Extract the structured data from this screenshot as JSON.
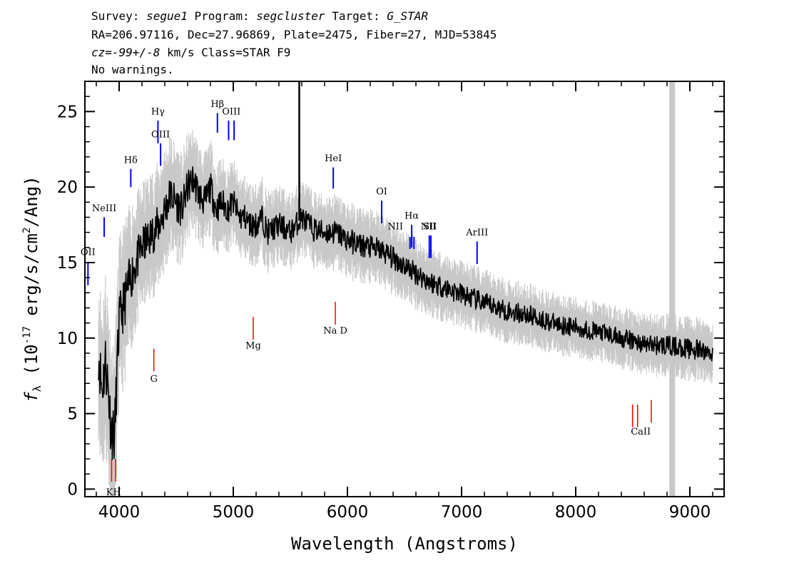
{
  "header": {
    "line1": {
      "survey_label": "Survey:",
      "survey": "segue1",
      "program_label": "Program:",
      "program": "segcluster",
      "target_label": "Target:",
      "target": "G_STAR"
    },
    "line2": "RA=206.97116, Dec=27.96869, Plate=2475, Fiber=27, MJD=53845",
    "line3": {
      "cz": "cz=-99+/-8",
      "rest": "km/s Class=STAR F9"
    },
    "line4": "No warnings."
  },
  "chart_data": {
    "type": "line",
    "xlabel": "Wavelength (Angstroms)",
    "ylabel": "f_λ (10^-17 erg/s/cm^2/Ang)",
    "xlim": [
      3700,
      9300
    ],
    "ylim": [
      -0.5,
      27
    ],
    "x_ticks": [
      4000,
      5000,
      6000,
      7000,
      8000,
      9000
    ],
    "y_ticks": [
      0,
      5,
      10,
      15,
      20,
      25
    ],
    "colors": {
      "flux": "#000000",
      "error": "#c8c8c8",
      "emission": "#0000ff",
      "absorption": "#ff0000"
    },
    "masked_region": [
      8820,
      8870
    ],
    "series": [
      {
        "name": "flux",
        "x": [
          3820,
          3850,
          3880,
          3900,
          3930,
          3960,
          3980,
          4000,
          4050,
          4100,
          4150,
          4200,
          4250,
          4300,
          4350,
          4400,
          4450,
          4500,
          4550,
          4600,
          4650,
          4700,
          4750,
          4800,
          4850,
          4900,
          4950,
          5000,
          5050,
          5100,
          5150,
          5200,
          5250,
          5300,
          5400,
          5500,
          5600,
          5700,
          5800,
          5900,
          6000,
          6100,
          6200,
          6300,
          6400,
          6500,
          6600,
          6700,
          6800,
          6900,
          7000,
          7200,
          7400,
          7600,
          7800,
          8000,
          8200,
          8400,
          8500,
          8600,
          8800,
          9000,
          9200
        ],
        "y": [
          9.0,
          6.5,
          8.5,
          7.0,
          4.0,
          3.5,
          7.5,
          11.0,
          12.5,
          14.0,
          15.0,
          16.0,
          16.5,
          17.0,
          17.5,
          18.5,
          19.5,
          19.0,
          18.5,
          20.0,
          20.5,
          19.5,
          19.0,
          20.0,
          18.5,
          19.0,
          18.5,
          19.0,
          18.0,
          18.0,
          17.5,
          17.5,
          18.0,
          17.0,
          17.5,
          17.0,
          18.0,
          17.2,
          17.0,
          17.0,
          16.5,
          16.2,
          16.0,
          15.8,
          15.3,
          14.8,
          14.3,
          13.8,
          13.5,
          13.2,
          12.9,
          12.3,
          11.8,
          11.5,
          11.0,
          10.7,
          10.4,
          10.0,
          9.8,
          9.6,
          9.5,
          9.3,
          9.0
        ],
        "spikes": [
          {
            "x": 5578,
            "y": 27
          }
        ]
      },
      {
        "name": "error",
        "x": [
          3820,
          3900,
          4000,
          4200,
          4400,
          4600,
          5000,
          5500,
          6000,
          7000,
          8000,
          9000,
          9200
        ],
        "y": [
          4.0,
          4.5,
          4.0,
          3.0,
          3.0,
          2.5,
          2.0,
          1.8,
          1.8,
          1.6,
          1.4,
          1.5,
          1.5
        ]
      }
    ],
    "emission_lines": [
      {
        "label": "OII",
        "x": 3727,
        "y_top": 15.0,
        "y_bottom": 13.5
      },
      {
        "label": "NeIII",
        "x": 3869,
        "y_top": 18.0,
        "y_bottom": 16.7
      },
      {
        "label": "Hδ",
        "x": 4102,
        "y_top": 21.2,
        "y_bottom": 20.0
      },
      {
        "label": "Hγ",
        "x": 4340,
        "y_top": 24.4,
        "y_bottom": 22.9
      },
      {
        "label": "OIII",
        "x": 4363,
        "y_top": 22.9,
        "y_bottom": 21.4
      },
      {
        "label": "Hβ",
        "x": 4861,
        "y_top": 24.9,
        "y_bottom": 23.6
      },
      {
        "label": "OIII",
        "x": 4959,
        "y_top": 24.4,
        "y_bottom": 23.1
      },
      {
        "label": "OIII",
        "x": 5007,
        "y_top": 24.4,
        "y_bottom": 23.1
      },
      {
        "label": "HeI",
        "x": 5876,
        "y_top": 21.3,
        "y_bottom": 19.9
      },
      {
        "label": "OI",
        "x": 6300,
        "y_top": 19.1,
        "y_bottom": 17.6
      },
      {
        "label": "NII",
        "x": 6548,
        "y_top": 16.7,
        "y_bottom": 15.9
      },
      {
        "label": "Hα",
        "x": 6563,
        "y_top": 17.5,
        "y_bottom": 16.0
      },
      {
        "label": "NII",
        "x": 6583,
        "y_top": 16.7,
        "y_bottom": 15.9
      },
      {
        "label": "SII",
        "x": 6717,
        "y_top": 16.8,
        "y_bottom": 15.3
      },
      {
        "label": "SII",
        "x": 6731,
        "y_top": 16.8,
        "y_bottom": 15.3
      },
      {
        "label": "ArIII",
        "x": 7136,
        "y_top": 16.4,
        "y_bottom": 14.9
      }
    ],
    "absorption_lines": [
      {
        "label": "K",
        "x": 3934,
        "y_top": 2.0,
        "y_bottom": 0.5
      },
      {
        "label": "H",
        "x": 3969,
        "y_top": 2.0,
        "y_bottom": 0.5
      },
      {
        "label": "G",
        "x": 4304,
        "y_top": 9.3,
        "y_bottom": 7.8
      },
      {
        "label": "Mg",
        "x": 5175,
        "y_top": 11.4,
        "y_bottom": 9.9
      },
      {
        "label": "Na",
        "x": 5894,
        "y_top": 12.4,
        "y_bottom": 10.9
      },
      {
        "label": "CaII",
        "x": 8498,
        "y_top": 5.6,
        "y_bottom": 4.1
      },
      {
        "label": "CaII",
        "x": 8542,
        "y_top": 5.6,
        "y_bottom": 4.1
      },
      {
        "label": "CaII",
        "x": 8662,
        "y_top": 5.9,
        "y_bottom": 4.4
      }
    ],
    "line_labels": [
      {
        "text": "OII",
        "kind": "emission",
        "x": 3727,
        "y": 15.5
      },
      {
        "text": "NeIII",
        "kind": "emission",
        "x": 3869,
        "y": 18.4
      },
      {
        "text": "Hδ",
        "kind": "emission",
        "x": 4102,
        "y": 21.6
      },
      {
        "text": "Hγ",
        "kind": "emission",
        "x": 4340,
        "y": 24.8
      },
      {
        "text": "OIII",
        "kind": "emission",
        "x": 4363,
        "y": 23.3
      },
      {
        "text": "Hβ",
        "kind": "emission",
        "x": 4861,
        "y": 25.3
      },
      {
        "text": "OIII",
        "kind": "emission",
        "x": 4983,
        "y": 24.8
      },
      {
        "text": "HeI",
        "kind": "emission",
        "x": 5876,
        "y": 21.7
      },
      {
        "text": "OI",
        "kind": "emission",
        "x": 6300,
        "y": 19.5
      },
      {
        "text": "NII",
        "kind": "emission",
        "x": 6420,
        "y": 17.2
      },
      {
        "text": "Hα",
        "kind": "emission",
        "x": 6563,
        "y": 17.9
      },
      {
        "text": "NII",
        "kind": "emission",
        "x": 6710,
        "y": 17.2
      },
      {
        "text": "SII",
        "kind": "emission",
        "x": 6724,
        "y": 17.2
      },
      {
        "text": "ArIII",
        "kind": "emission",
        "x": 7136,
        "y": 16.8
      },
      {
        "text": "KH",
        "kind": "absorption",
        "x": 3952,
        "y": -0.4
      },
      {
        "text": "G",
        "kind": "absorption",
        "x": 4304,
        "y": 7.1
      },
      {
        "text": "Mg",
        "kind": "absorption",
        "x": 5175,
        "y": 9.3
      },
      {
        "text": "Na D",
        "kind": "absorption",
        "x": 5894,
        "y": 10.3
      },
      {
        "text": "CaII",
        "kind": "absorption",
        "x": 8570,
        "y": 3.6
      }
    ]
  }
}
